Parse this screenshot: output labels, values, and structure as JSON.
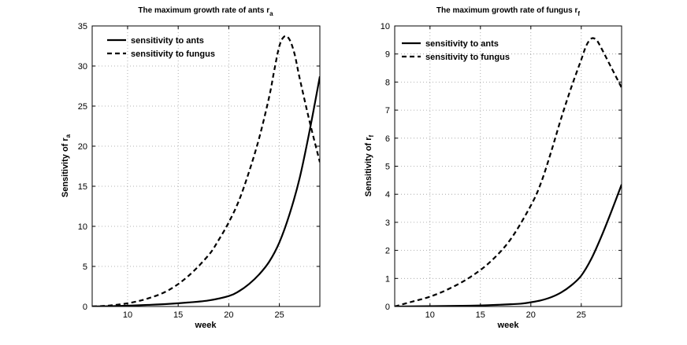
{
  "chart_data": [
    {
      "type": "line",
      "title": "The maximum growth rate of ants r",
      "title_subscript": "a",
      "xlabel": "week",
      "ylabel": "Sensitivity of r",
      "ylabel_subscript": "a",
      "xlim": [
        6.5,
        29
      ],
      "ylim": [
        0,
        35
      ],
      "xticks": [
        10,
        15,
        20,
        25
      ],
      "yticks": [
        0,
        5,
        10,
        15,
        20,
        25,
        30,
        35
      ],
      "grid": true,
      "legend_position": "top-left",
      "series": [
        {
          "name": "sensitivity to  ants",
          "style": "solid",
          "x": [
            6.5,
            8,
            10,
            12,
            14,
            16,
            18,
            20,
            21,
            22,
            23,
            24,
            25,
            26,
            27,
            28,
            29
          ],
          "y": [
            0,
            0.03,
            0.1,
            0.2,
            0.32,
            0.5,
            0.75,
            1.3,
            1.9,
            2.8,
            4.0,
            5.6,
            8.0,
            11.5,
            16.0,
            22.0,
            28.7
          ]
        },
        {
          "name": "sensitivity to fungus",
          "style": "dashed",
          "x": [
            6.5,
            8,
            10,
            12,
            14,
            16,
            18,
            19,
            20,
            21,
            22,
            23,
            24,
            24.5,
            25,
            25.5,
            26,
            26.5,
            27,
            28,
            29
          ],
          "y": [
            0,
            0.1,
            0.4,
            1.0,
            2.0,
            3.8,
            6.4,
            8.3,
            10.5,
            13.2,
            16.8,
            21.0,
            26.2,
            29.5,
            32.5,
            33.7,
            33.3,
            31.5,
            28.5,
            23.0,
            18.0
          ]
        }
      ]
    },
    {
      "type": "line",
      "title": "The maximum growth rate of fungus r",
      "title_subscript": "f",
      "xlabel": "week",
      "ylabel": "Sensitivity of r",
      "ylabel_subscript": "f",
      "xlim": [
        6.5,
        29
      ],
      "ylim": [
        0,
        10
      ],
      "xticks": [
        10,
        15,
        20,
        25
      ],
      "yticks": [
        0,
        1,
        2,
        3,
        4,
        5,
        6,
        7,
        8,
        9,
        10
      ],
      "grid": true,
      "legend_position": "top-left",
      "series": [
        {
          "name": "sensitivity to ants",
          "style": "solid",
          "x": [
            6.5,
            10,
            14,
            16,
            18,
            19,
            20,
            21,
            22,
            23,
            24,
            25,
            26,
            27,
            28,
            29
          ],
          "y": [
            0,
            0.01,
            0.03,
            0.05,
            0.08,
            0.1,
            0.15,
            0.22,
            0.33,
            0.5,
            0.75,
            1.1,
            1.7,
            2.5,
            3.4,
            4.35
          ]
        },
        {
          "name": "sensitivity to fungus",
          "style": "dashed",
          "x": [
            6.5,
            8,
            10,
            12,
            14,
            16,
            18,
            20,
            21,
            22,
            23,
            24,
            25,
            25.5,
            26,
            26.5,
            27,
            28,
            29
          ],
          "y": [
            0,
            0.15,
            0.35,
            0.65,
            1.05,
            1.6,
            2.4,
            3.6,
            4.4,
            5.5,
            6.7,
            7.8,
            8.8,
            9.3,
            9.55,
            9.5,
            9.2,
            8.5,
            7.8
          ]
        }
      ]
    }
  ]
}
